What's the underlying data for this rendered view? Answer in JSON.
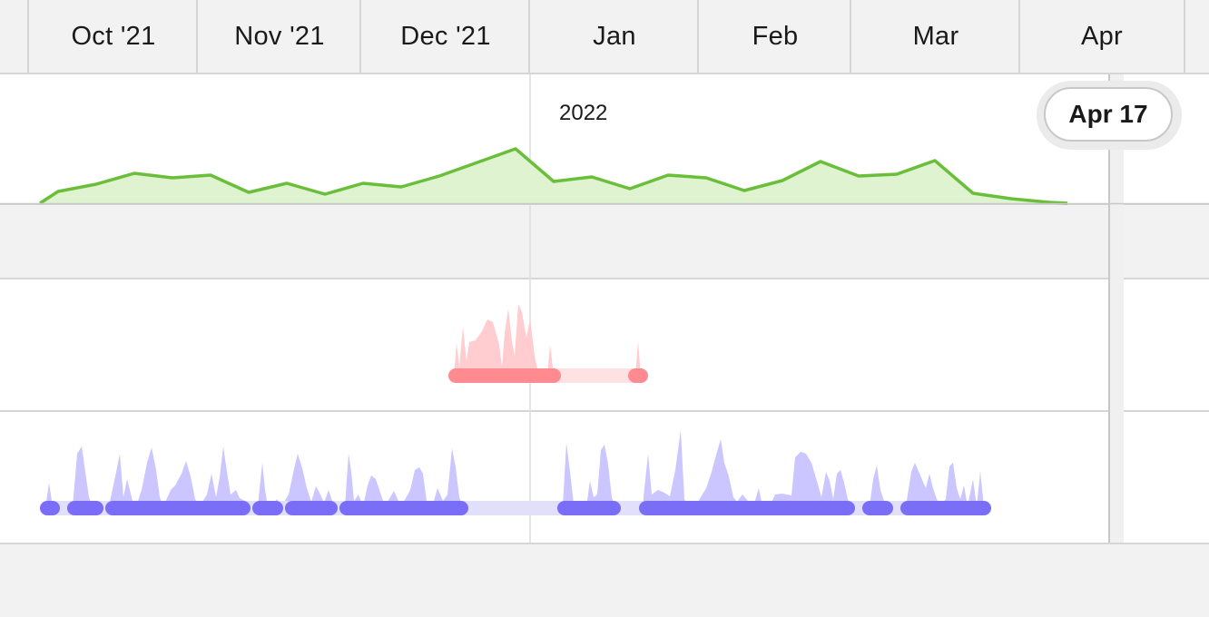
{
  "timeline": {
    "months": [
      {
        "label": "Oct '21"
      },
      {
        "label": "Nov '21"
      },
      {
        "label": "Dec '21"
      },
      {
        "label": "Jan"
      },
      {
        "label": "Feb"
      },
      {
        "label": "Mar"
      },
      {
        "label": "Apr"
      }
    ],
    "year_marker": "2022",
    "current_date": "Apr 17"
  },
  "colors": {
    "green_line": "#6abf3a",
    "green_fill": "#dff3d0",
    "red_bar": "#ff8a8f",
    "red_fill": "#ffcdd0",
    "red_track": "#fde1e3",
    "purple_bar": "#7b6ef6",
    "purple_fill": "#cbc6ff",
    "purple_track": "#e2dffa"
  }
}
